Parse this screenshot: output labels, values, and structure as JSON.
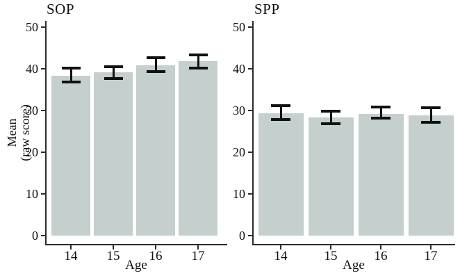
{
  "figure": {
    "background": "#ffffff",
    "axis_color": "#2b2b2b",
    "error_bar_color": "#111111",
    "ylabel_line1": "Mean",
    "ylabel_line2": "(raw score)"
  },
  "chart_data": [
    {
      "type": "bar",
      "title": "SOP",
      "xlabel": "Age",
      "ylabel": "Mean (raw score)",
      "categories": [
        "14",
        "15",
        "16",
        "17"
      ],
      "values": [
        38.3,
        39.1,
        40.9,
        41.8
      ],
      "error_low": [
        36.8,
        37.6,
        39.4,
        40.1
      ],
      "error_high": [
        40.1,
        40.5,
        42.6,
        43.4
      ],
      "y_ticks": [
        0,
        10,
        20,
        30,
        40,
        50
      ],
      "ylim": [
        0,
        51.5
      ],
      "grid": false,
      "legend": false,
      "bar_color": "#c5cfce"
    },
    {
      "type": "bar",
      "title": "SPP",
      "xlabel": "Age",
      "ylabel": "Mean (raw score)",
      "categories": [
        "14",
        "15",
        "16",
        "17"
      ],
      "values": [
        29.3,
        28.4,
        29.2,
        28.8
      ],
      "error_low": [
        27.9,
        26.9,
        28.2,
        27.2
      ],
      "error_high": [
        31.1,
        29.9,
        30.9,
        30.7
      ],
      "y_ticks": [
        0,
        10,
        20,
        30,
        40,
        50
      ],
      "ylim": [
        0,
        51.5
      ],
      "grid": false,
      "legend": false,
      "bar_color": "#c5cfce"
    }
  ]
}
